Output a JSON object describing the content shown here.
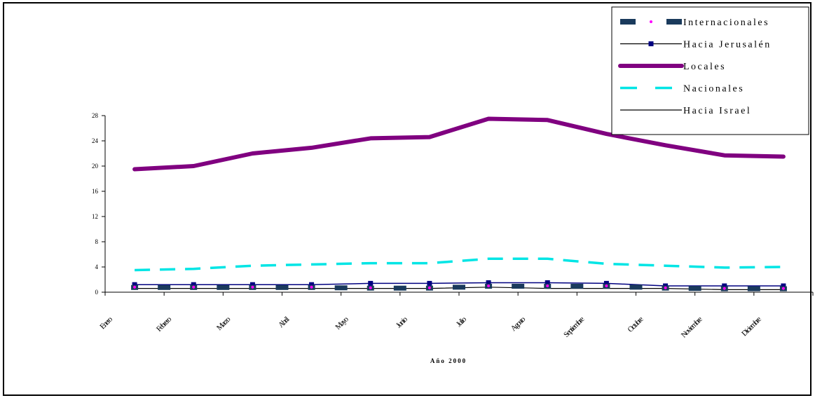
{
  "chart_data": {
    "type": "line",
    "title": "",
    "xlabel": "Año 2000",
    "ylabel": "",
    "ylim": [
      0,
      28
    ],
    "yticks": [
      0,
      4,
      8,
      12,
      16,
      20,
      24,
      28
    ],
    "grid": false,
    "legend_position": "top-right",
    "categories": [
      "Enero",
      "Febrero",
      "Marzo",
      "Abril",
      "Mayo",
      "Junio",
      "Julio",
      "Agosto",
      "Septiembre",
      "Octubre",
      "Noviembre",
      "Diciembre"
    ],
    "series": [
      {
        "name": "Internacionales",
        "color": "#1a3a5c",
        "style": "dashed-square",
        "values": [
          0.8,
          0.8,
          0.8,
          0.8,
          0.7,
          0.7,
          1.0,
          1.0,
          1.0,
          0.7,
          0.6,
          0.6
        ]
      },
      {
        "name": "Hacia Jerusalén",
        "color": "#000080",
        "style": "line-marker",
        "values": [
          1.2,
          1.2,
          1.2,
          1.2,
          1.4,
          1.4,
          1.5,
          1.5,
          1.4,
          1.0,
          1.0,
          1.0
        ]
      },
      {
        "name": "Locales",
        "color": "#800080",
        "style": "thick",
        "values": [
          19.5,
          20.0,
          22.0,
          22.9,
          24.4,
          24.6,
          27.5,
          27.3,
          25.1,
          23.3,
          21.7,
          21.5
        ]
      },
      {
        "name": "Nacionales",
        "color": "#00e5e5",
        "style": "dashed",
        "values": [
          3.5,
          3.7,
          4.2,
          4.4,
          4.6,
          4.6,
          5.3,
          5.3,
          4.5,
          4.2,
          3.9,
          4.0
        ]
      },
      {
        "name": "Hacia Israel",
        "color": "#000000",
        "style": "thin",
        "values": [
          0.6,
          0.6,
          0.6,
          0.6,
          0.6,
          0.6,
          0.8,
          0.6,
          0.6,
          0.6,
          0.4,
          0.4
        ]
      }
    ]
  },
  "legend": {
    "items": [
      "Internacionales",
      "Hacia Jerusalén",
      "Locales",
      "Nacionales",
      "Hacia Israel"
    ]
  }
}
